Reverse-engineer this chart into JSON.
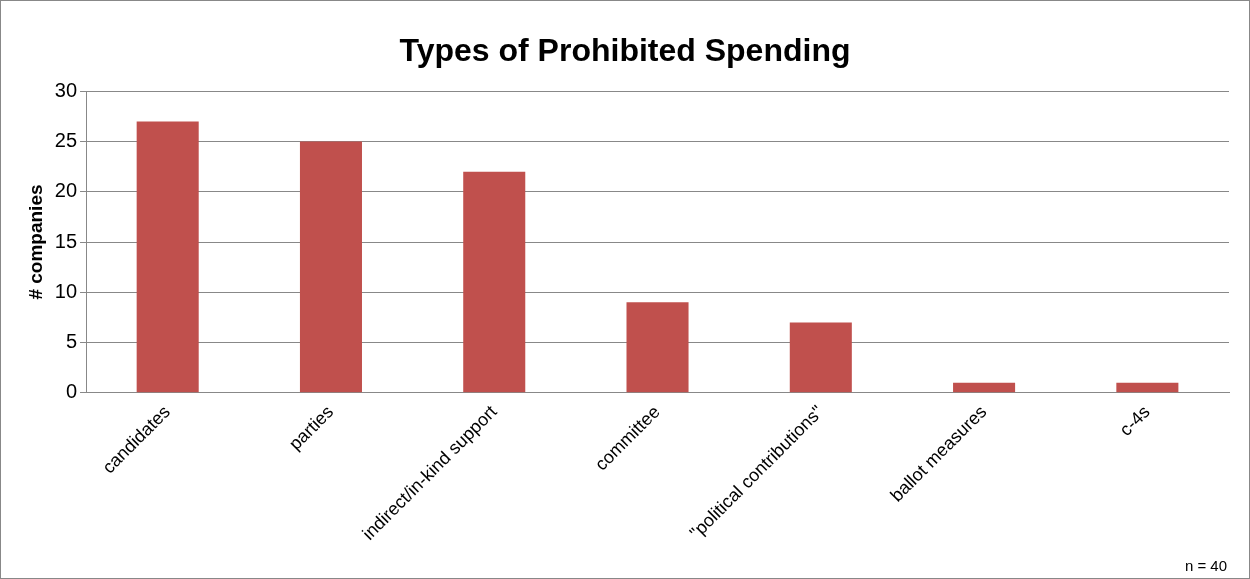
{
  "chart_data": {
    "type": "bar",
    "title": "Types of Prohibited Spending",
    "ylabel": "# companies",
    "categories": [
      "candidates",
      "parties",
      "indirect/in-kind support",
      "committee",
      "\"political contributions\"",
      "ballot measures",
      "c-4s"
    ],
    "values": [
      27,
      25,
      22,
      9,
      7,
      1,
      1
    ],
    "color": "#c0504d",
    "ylim": [
      0,
      30
    ],
    "yticks": [
      0,
      5,
      10,
      15,
      20,
      25,
      30
    ],
    "grid": "y",
    "legend": false,
    "annotations": [
      "n = 40"
    ]
  }
}
